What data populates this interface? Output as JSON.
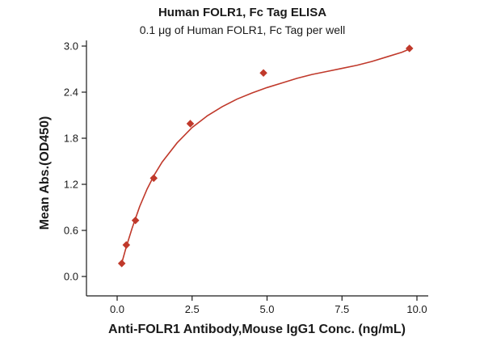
{
  "chart_data": {
    "type": "scatter",
    "title": "Human FOLR1, Fc Tag ELISA",
    "subtitle": "0.1 μg of Human FOLR1, Fc Tag per well",
    "xlabel": "Anti-FOLR1 Antibody,Mouse IgG1 Conc. (ng/mL)",
    "ylabel": "Mean Abs.(OD450)",
    "xlim": [
      -1.0,
      10.0
    ],
    "ylim": [
      -0.1,
      3.0
    ],
    "xticks": [
      0.0,
      2.5,
      5.0,
      7.5,
      10.0
    ],
    "xtick_labels": [
      "0.0",
      "2.5",
      "5.0",
      "7.5",
      "10.0"
    ],
    "yticks": [
      0.0,
      0.6,
      1.2,
      1.8,
      2.4,
      3.0
    ],
    "ytick_labels": [
      "0.0",
      "0.6",
      "1.2",
      "1.8",
      "2.4",
      "3.0"
    ],
    "grid": false,
    "series": [
      {
        "x": [
          0.153,
          0.305,
          0.61,
          1.22,
          2.44,
          4.88,
          9.75
        ],
        "y": [
          0.17,
          0.41,
          0.73,
          1.28,
          1.99,
          2.65,
          2.97
        ],
        "color": "#c0392b",
        "marker": "diamond"
      }
    ],
    "fit_curve": {
      "model": "hyperbolic",
      "color": "#c0392b",
      "x": [
        0.15,
        0.3,
        0.5,
        0.75,
        1.0,
        1.25,
        1.5,
        2.0,
        2.5,
        3.0,
        3.5,
        4.0,
        4.5,
        5.0,
        5.5,
        6.0,
        6.5,
        7.0,
        7.5,
        8.0,
        8.5,
        9.0,
        9.5,
        9.75
      ],
      "y": [
        0.17,
        0.38,
        0.63,
        0.91,
        1.14,
        1.33,
        1.49,
        1.74,
        1.94,
        2.09,
        2.21,
        2.31,
        2.39,
        2.46,
        2.52,
        2.58,
        2.63,
        2.67,
        2.71,
        2.75,
        2.8,
        2.86,
        2.92,
        2.96
      ]
    }
  }
}
